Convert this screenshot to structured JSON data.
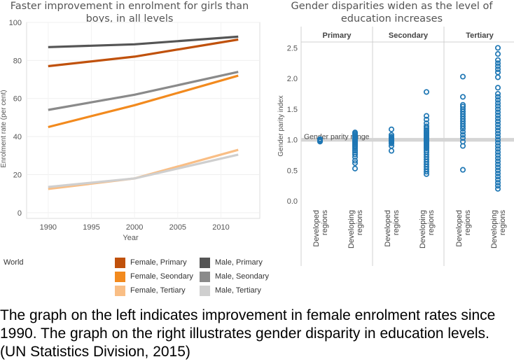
{
  "left_title": "Faster improvement in enrolment for girls than boys, in all levels",
  "right_title": "Gender disparities widen as the level of education increases",
  "legend": {
    "title": "World",
    "items": [
      {
        "label": "Female, Primary",
        "color": "#C0510C"
      },
      {
        "label": "Female, Seondary",
        "color": "#F28A1E"
      },
      {
        "label": "Female, Tertiary",
        "color": "#F9BE85"
      },
      {
        "label": "Male, Primary",
        "color": "#555555"
      },
      {
        "label": "Male, Seondary",
        "color": "#8A8A8A"
      },
      {
        "label": "Male, Tertiary",
        "color": "#CFCFCF"
      }
    ]
  },
  "caption": "The graph on the left indicates improvement in female enrolment rates since 1990. The graph on the right illustrates gender disparity in education levels. (UN Statistics Division, 2015)",
  "chart_data": [
    {
      "type": "line",
      "title": "Faster improvement in enrolment for girls than boys, in all levels",
      "xlabel": "Year",
      "ylabel": "Enrolment rate (per cent)",
      "xlim": [
        1987.5,
        2014.5
      ],
      "ylim": [
        -3,
        100
      ],
      "xticks": [
        1990,
        1995,
        2000,
        2005,
        2010
      ],
      "yticks": [
        0,
        20,
        40,
        60,
        80,
        100
      ],
      "x": [
        1990,
        2000,
        2012
      ],
      "series": [
        {
          "name": "Female, Primary",
          "color": "#C0510C",
          "values": [
            77,
            82,
            91
          ]
        },
        {
          "name": "Female, Seondary",
          "color": "#F28A1E",
          "values": [
            45,
            56.5,
            72
          ]
        },
        {
          "name": "Female, Tertiary",
          "color": "#F9BE85",
          "values": [
            12.5,
            18,
            33
          ]
        },
        {
          "name": "Male, Primary",
          "color": "#555555",
          "values": [
            87,
            88.5,
            92.5
          ]
        },
        {
          "name": "Male, Seondary",
          "color": "#8A8A8A",
          "values": [
            54,
            62,
            74
          ]
        },
        {
          "name": "Male, Tertiary",
          "color": "#CFCFCF",
          "values": [
            13.5,
            18,
            30.5
          ]
        }
      ]
    },
    {
      "type": "scatter",
      "title": "Gender disparities widen as the level of education increases",
      "ylabel": "Gender parity index",
      "ylim": [
        -0.1,
        2.55
      ],
      "yticks": [
        "0.0",
        "0.5",
        "1.0",
        "1.5",
        "2.0",
        "2.5"
      ],
      "band_label": "Gender parity range",
      "band": [
        0.97,
        1.03
      ],
      "panels": [
        "Primary",
        "Secondary",
        "Tertiary"
      ],
      "categories": [
        "Developed regions",
        "Developing regions"
      ],
      "series": [
        {
          "panel": "Primary",
          "category": "Developed regions",
          "values": [
            0.97,
            0.98,
            0.99,
            1.0,
            1.0,
            1.01,
            0.98,
            0.99,
            1.0,
            0.99
          ]
        },
        {
          "panel": "Primary",
          "category": "Developing regions",
          "values": [
            0.53,
            0.62,
            0.66,
            0.72,
            0.76,
            0.79,
            0.82,
            0.85,
            0.88,
            0.9,
            0.92,
            0.94,
            0.95,
            0.96,
            0.97,
            0.98,
            0.99,
            1.0,
            1.01,
            1.02,
            1.03,
            1.04,
            1.05,
            1.06,
            1.08,
            1.1,
            1.12
          ]
        },
        {
          "panel": "Secondary",
          "category": "Developed regions",
          "values": [
            0.82,
            0.9,
            0.94,
            0.96,
            0.98,
            0.99,
            1.0,
            1.01,
            1.02,
            1.03,
            1.05,
            1.08,
            1.17
          ]
        },
        {
          "panel": "Secondary",
          "category": "Developing regions",
          "values": [
            0.44,
            0.48,
            0.52,
            0.56,
            0.6,
            0.64,
            0.68,
            0.72,
            0.76,
            0.8,
            0.83,
            0.86,
            0.88,
            0.9,
            0.92,
            0.94,
            0.96,
            0.98,
            1.0,
            1.02,
            1.04,
            1.06,
            1.08,
            1.1,
            1.12,
            1.14,
            1.16,
            1.19,
            1.22,
            1.27,
            1.33,
            1.39,
            1.78
          ]
        },
        {
          "panel": "Tertiary",
          "category": "Developed regions",
          "values": [
            0.51,
            0.9,
            0.97,
            1.03,
            1.08,
            1.13,
            1.18,
            1.22,
            1.26,
            1.3,
            1.34,
            1.38,
            1.42,
            1.46,
            1.5,
            1.54,
            1.57,
            1.7,
            2.03
          ]
        },
        {
          "panel": "Tertiary",
          "category": "Developing regions",
          "values": [
            0.2,
            0.25,
            0.3,
            0.35,
            0.4,
            0.45,
            0.5,
            0.55,
            0.6,
            0.65,
            0.7,
            0.75,
            0.8,
            0.85,
            0.9,
            0.95,
            1.0,
            1.05,
            1.1,
            1.15,
            1.2,
            1.25,
            1.3,
            1.35,
            1.4,
            1.45,
            1.5,
            1.55,
            1.6,
            1.65,
            1.7,
            1.75,
            1.85,
            2.02,
            2.1,
            2.15,
            2.2,
            2.25,
            2.3,
            2.4,
            2.5
          ]
        }
      ]
    }
  ]
}
